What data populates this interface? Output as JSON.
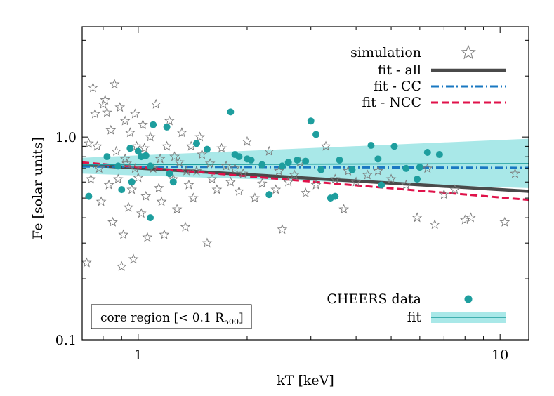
{
  "chart_data": {
    "type": "scatter",
    "xlabel": "kT [keV]",
    "ylabel": "Fe [solar units]",
    "x_scale": "log",
    "y_scale": "log",
    "xlim": [
      0.7,
      12
    ],
    "ylim": [
      0.1,
      3.5
    ],
    "x_ticks": [
      {
        "value": 1,
        "label": "1"
      },
      {
        "value": 10,
        "label": "10"
      }
    ],
    "y_ticks": [
      {
        "value": 0.1,
        "label": "0.1"
      },
      {
        "value": 1,
        "label": "1.0"
      }
    ],
    "annotation": {
      "text": "core region [< 0.1 R",
      "sub": "500",
      "suffix": "]"
    },
    "legend_top": [
      {
        "label": "simulation",
        "kind": "star"
      },
      {
        "label": "fit - all",
        "kind": "solid",
        "color": "#4a4a4a"
      },
      {
        "label": "fit - CC",
        "kind": "dashdot",
        "color": "#1a78c2"
      },
      {
        "label": "fit - NCC",
        "kind": "dashed",
        "color": "#e0124a"
      }
    ],
    "legend_bottom": [
      {
        "label": "CHEERS data",
        "kind": "dot",
        "color": "#1e9e9e"
      },
      {
        "label": "fit",
        "kind": "band",
        "color": "#1e9e9e",
        "band_color": "#a9e8e8"
      }
    ],
    "series": [
      {
        "name": "CHEERS data",
        "kind": "points",
        "color": "#1e9e9e",
        "points": [
          [
            0.73,
            0.51
          ],
          [
            0.9,
            0.55
          ],
          [
            0.95,
            0.88
          ],
          [
            1.0,
            0.85
          ],
          [
            1.02,
            0.8
          ],
          [
            1.05,
            0.81
          ],
          [
            1.1,
            1.15
          ],
          [
            1.2,
            1.12
          ],
          [
            1.25,
            0.6
          ],
          [
            1.45,
            0.93
          ],
          [
            1.55,
            0.87
          ],
          [
            1.8,
            1.33
          ],
          [
            1.85,
            0.82
          ],
          [
            1.9,
            0.8
          ],
          [
            2.0,
            0.78
          ],
          [
            2.05,
            0.77
          ],
          [
            2.2,
            0.73
          ],
          [
            2.3,
            0.52
          ],
          [
            2.6,
            0.75
          ],
          [
            2.75,
            0.77
          ],
          [
            2.9,
            0.76
          ],
          [
            3.0,
            1.2
          ],
          [
            3.1,
            1.03
          ],
          [
            3.4,
            0.5
          ],
          [
            3.5,
            0.51
          ],
          [
            3.6,
            0.77
          ],
          [
            3.9,
            0.69
          ],
          [
            4.4,
            0.91
          ],
          [
            4.6,
            0.78
          ],
          [
            4.7,
            0.58
          ],
          [
            5.1,
            0.9
          ],
          [
            5.5,
            0.7
          ],
          [
            5.9,
            0.62
          ],
          [
            6.3,
            0.84
          ],
          [
            6.8,
            0.82
          ],
          [
            0.82,
            0.8
          ],
          [
            0.88,
            0.72
          ],
          [
            1.08,
            0.72
          ],
          [
            1.22,
            0.66
          ],
          [
            2.5,
            0.72
          ],
          [
            3.2,
            0.69
          ],
          [
            6.0,
            0.71
          ],
          [
            1.08,
            0.4
          ],
          [
            0.96,
            0.6
          ]
        ]
      },
      {
        "name": "simulation",
        "kind": "stars",
        "points": [
          [
            0.72,
            0.24
          ],
          [
            0.73,
            0.93
          ],
          [
            0.74,
            0.62
          ],
          [
            0.75,
            1.75
          ],
          [
            0.76,
            1.3
          ],
          [
            0.78,
            0.7
          ],
          [
            0.79,
            0.48
          ],
          [
            0.8,
            1.45
          ],
          [
            0.81,
            1.52
          ],
          [
            0.82,
            1.32
          ],
          [
            0.83,
            0.58
          ],
          [
            0.84,
            1.08
          ],
          [
            0.85,
            0.38
          ],
          [
            0.86,
            1.82
          ],
          [
            0.87,
            0.85
          ],
          [
            0.88,
            0.62
          ],
          [
            0.89,
            1.4
          ],
          [
            0.9,
            0.23
          ],
          [
            0.91,
            0.33
          ],
          [
            0.92,
            1.2
          ],
          [
            0.93,
            0.74
          ],
          [
            0.94,
            0.45
          ],
          [
            0.95,
            1.05
          ],
          [
            0.96,
            0.55
          ],
          [
            0.97,
            0.25
          ],
          [
            0.98,
            1.3
          ],
          [
            0.99,
            0.9
          ],
          [
            1.0,
            0.63
          ],
          [
            1.02,
            0.42
          ],
          [
            1.03,
            1.15
          ],
          [
            1.05,
            0.51
          ],
          [
            1.06,
            0.32
          ],
          [
            1.08,
            1.0
          ],
          [
            1.1,
            0.7
          ],
          [
            1.12,
            1.45
          ],
          [
            1.14,
            0.56
          ],
          [
            1.16,
            0.48
          ],
          [
            1.18,
            0.33
          ],
          [
            1.2,
            0.9
          ],
          [
            1.22,
            1.2
          ],
          [
            1.25,
            0.62
          ],
          [
            1.28,
            0.44
          ],
          [
            1.3,
            0.75
          ],
          [
            1.32,
            1.05
          ],
          [
            1.35,
            0.36
          ],
          [
            1.38,
            0.58
          ],
          [
            1.4,
            0.9
          ],
          [
            1.42,
            0.5
          ],
          [
            1.45,
            0.68
          ],
          [
            1.48,
            1.0
          ],
          [
            1.5,
            0.82
          ],
          [
            1.55,
            0.3
          ],
          [
            1.6,
            0.62
          ],
          [
            1.65,
            0.55
          ],
          [
            1.7,
            0.88
          ],
          [
            1.75,
            0.72
          ],
          [
            1.8,
            0.6
          ],
          [
            1.9,
            0.54
          ],
          [
            1.95,
            0.66
          ],
          [
            2.0,
            0.95
          ],
          [
            2.1,
            0.5
          ],
          [
            2.2,
            0.59
          ],
          [
            2.3,
            0.85
          ],
          [
            2.4,
            0.55
          ],
          [
            2.5,
            0.35
          ],
          [
            2.6,
            0.6
          ],
          [
            2.7,
            0.65
          ],
          [
            2.8,
            0.75
          ],
          [
            2.9,
            0.53
          ],
          [
            3.1,
            0.58
          ],
          [
            3.3,
            0.9
          ],
          [
            3.5,
            0.62
          ],
          [
            3.7,
            0.44
          ],
          [
            4.0,
            0.6
          ],
          [
            4.3,
            0.65
          ],
          [
            4.6,
            0.68
          ],
          [
            5.0,
            0.62
          ],
          [
            5.5,
            0.58
          ],
          [
            5.9,
            0.4
          ],
          [
            6.3,
            0.7
          ],
          [
            6.6,
            0.37
          ],
          [
            7.0,
            0.52
          ],
          [
            7.5,
            0.55
          ],
          [
            8.0,
            0.39
          ],
          [
            8.3,
            0.4
          ],
          [
            10.3,
            0.38
          ],
          [
            11.0,
            0.66
          ],
          [
            0.77,
            0.9
          ],
          [
            0.92,
            0.78
          ],
          [
            0.98,
            0.7
          ],
          [
            1.04,
            0.88
          ],
          [
            1.15,
            0.78
          ],
          [
            1.26,
            0.8
          ],
          [
            1.36,
            0.68
          ],
          [
            1.58,
            0.74
          ],
          [
            1.85,
            0.7
          ],
          [
            2.45,
            0.68
          ],
          [
            3.8,
            0.68
          ]
        ]
      }
    ],
    "fit_lines": [
      {
        "name": "fit - all",
        "style": "solid",
        "color": "#4a4a4a",
        "x": [
          0.7,
          12
        ],
        "y": [
          0.73,
          0.54
        ]
      },
      {
        "name": "fit - CC",
        "style": "dashdot",
        "color": "#1a78c2",
        "x": [
          0.7,
          12
        ],
        "y": [
          0.715,
          0.705
        ]
      },
      {
        "name": "fit - NCC",
        "style": "dashed",
        "color": "#e0124a",
        "x": [
          0.7,
          12
        ],
        "y": [
          0.75,
          0.49
        ]
      },
      {
        "name": "fit",
        "style": "thin",
        "color": "#1e9e9e",
        "x": [
          0.7,
          12
        ],
        "y": [
          0.73,
          0.74
        ]
      }
    ],
    "fit_band": {
      "name": "fit",
      "color": "#a9e8e8",
      "x": [
        0.7,
        12
      ],
      "lower": [
        0.66,
        0.56
      ],
      "upper": [
        0.79,
        0.98
      ]
    }
  }
}
